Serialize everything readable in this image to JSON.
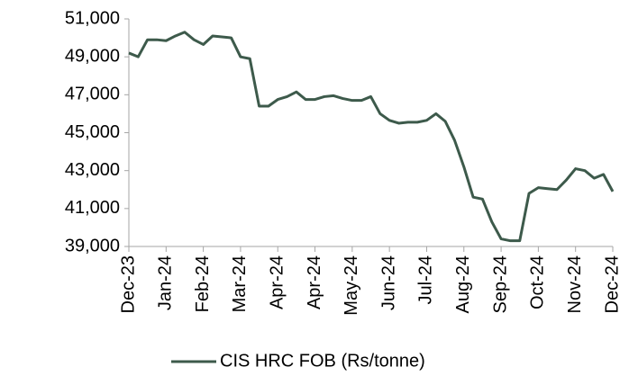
{
  "chart_data": {
    "type": "line",
    "categories": [
      "Dec-23",
      null,
      null,
      null,
      "Jan-24",
      null,
      null,
      null,
      "Feb-24",
      null,
      null,
      null,
      "Mar-24",
      null,
      null,
      null,
      "Apr-24",
      null,
      null,
      null,
      "Apr-24",
      null,
      null,
      null,
      "May-24",
      null,
      null,
      null,
      "Jun-24",
      null,
      null,
      null,
      "Jul-24",
      null,
      null,
      null,
      "Aug-24",
      null,
      null,
      null,
      "Sep-24",
      null,
      null,
      null,
      "Oct-24",
      null,
      null,
      null,
      "Nov-24",
      null,
      null,
      null,
      "Dec-24"
    ],
    "series": [
      {
        "name": "CIS HRC FOB (Rs/tonne)",
        "color": "#3d5a4b",
        "values": [
          49200,
          49000,
          49900,
          49900,
          49850,
          50100,
          50300,
          49900,
          49650,
          50100,
          50050,
          50000,
          49000,
          48900,
          46400,
          46400,
          46750,
          46900,
          47150,
          46750,
          46750,
          46900,
          46950,
          46800,
          46700,
          46700,
          46900,
          46000,
          45650,
          45500,
          45550,
          45550,
          45650,
          46000,
          45600,
          44600,
          43200,
          41600,
          41500,
          40300,
          39400,
          39300,
          39300,
          41800,
          42100,
          42050,
          42000,
          42500,
          43100,
          43000,
          42600,
          42800,
          41900
        ]
      }
    ],
    "ylim": [
      39000,
      51000
    ],
    "yticks": [
      {
        "value": 39000,
        "label": "39,000"
      },
      {
        "value": 41000,
        "label": "41,000"
      },
      {
        "value": 43000,
        "label": "43,000"
      },
      {
        "value": 45000,
        "label": "45,000"
      },
      {
        "value": 47000,
        "label": "47,000"
      },
      {
        "value": 49000,
        "label": "49,000"
      },
      {
        "value": 51000,
        "label": "51,000"
      }
    ],
    "legend": "bottom"
  }
}
